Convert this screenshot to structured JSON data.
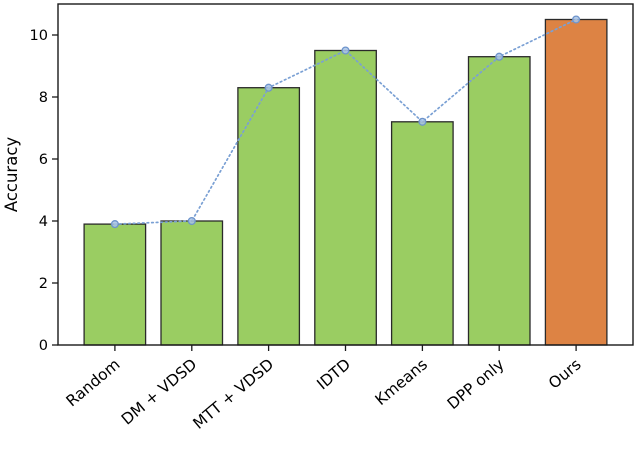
{
  "figure": {
    "background": "#ffffff"
  },
  "chart_data": {
    "type": "bar",
    "categories": [
      "Random",
      "DM + VDSD",
      "MTT + VDSD",
      "IDTD",
      "Kmeans",
      "DPP only",
      "Ours"
    ],
    "values": [
      3.9,
      4.0,
      8.3,
      9.5,
      7.2,
      9.3,
      10.5
    ],
    "highlight_category": "Ours",
    "overlay_line": {
      "type": "line",
      "style": "dotted",
      "marker": "circle",
      "values": [
        3.9,
        4.0,
        8.3,
        9.5,
        7.2,
        9.3,
        10.5
      ]
    },
    "title": "",
    "xlabel": "",
    "ylabel": "Accuracy",
    "ylim": [
      0,
      11
    ],
    "yticks": [
      0,
      2,
      4,
      6,
      8,
      10
    ],
    "xtick_rotation_deg": 40,
    "grid": false,
    "legend": "none",
    "colors": {
      "bar_fill": "#9ACD62",
      "highlight_fill": "#DD8344",
      "bar_edge": "#2A2A2A",
      "line": "#7AA0D4",
      "marker_fill": "#A9C4E6",
      "marker_edge": "#6E94CC",
      "spine": "#1A1A1A"
    }
  }
}
